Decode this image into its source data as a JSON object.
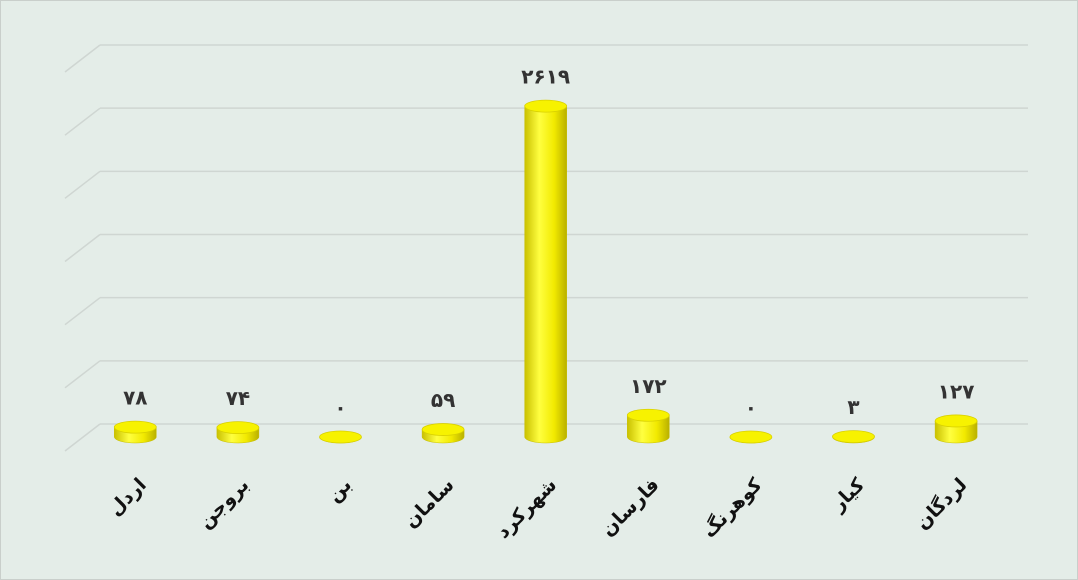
{
  "chart_data": {
    "type": "bar",
    "categories": [
      "اردل",
      "بروجن",
      "بن",
      "سامان",
      "شهرکرد",
      "فارسان",
      "کوهرنگ",
      "کیار",
      "لردگان"
    ],
    "values": [
      78,
      74,
      0,
      59,
      2619,
      172,
      0,
      3,
      127
    ],
    "value_labels": [
      "۷۸",
      "۷۴",
      "۰",
      "۵۹",
      "۲۶۱۹",
      "۱۷۲",
      "۰",
      "۳",
      "۱۲۷"
    ],
    "color": "#f2ea00",
    "ylim": [
      0,
      3000
    ],
    "yticks": [
      0,
      500,
      1000,
      1500,
      2000,
      2500,
      3000
    ],
    "grid": true
  }
}
